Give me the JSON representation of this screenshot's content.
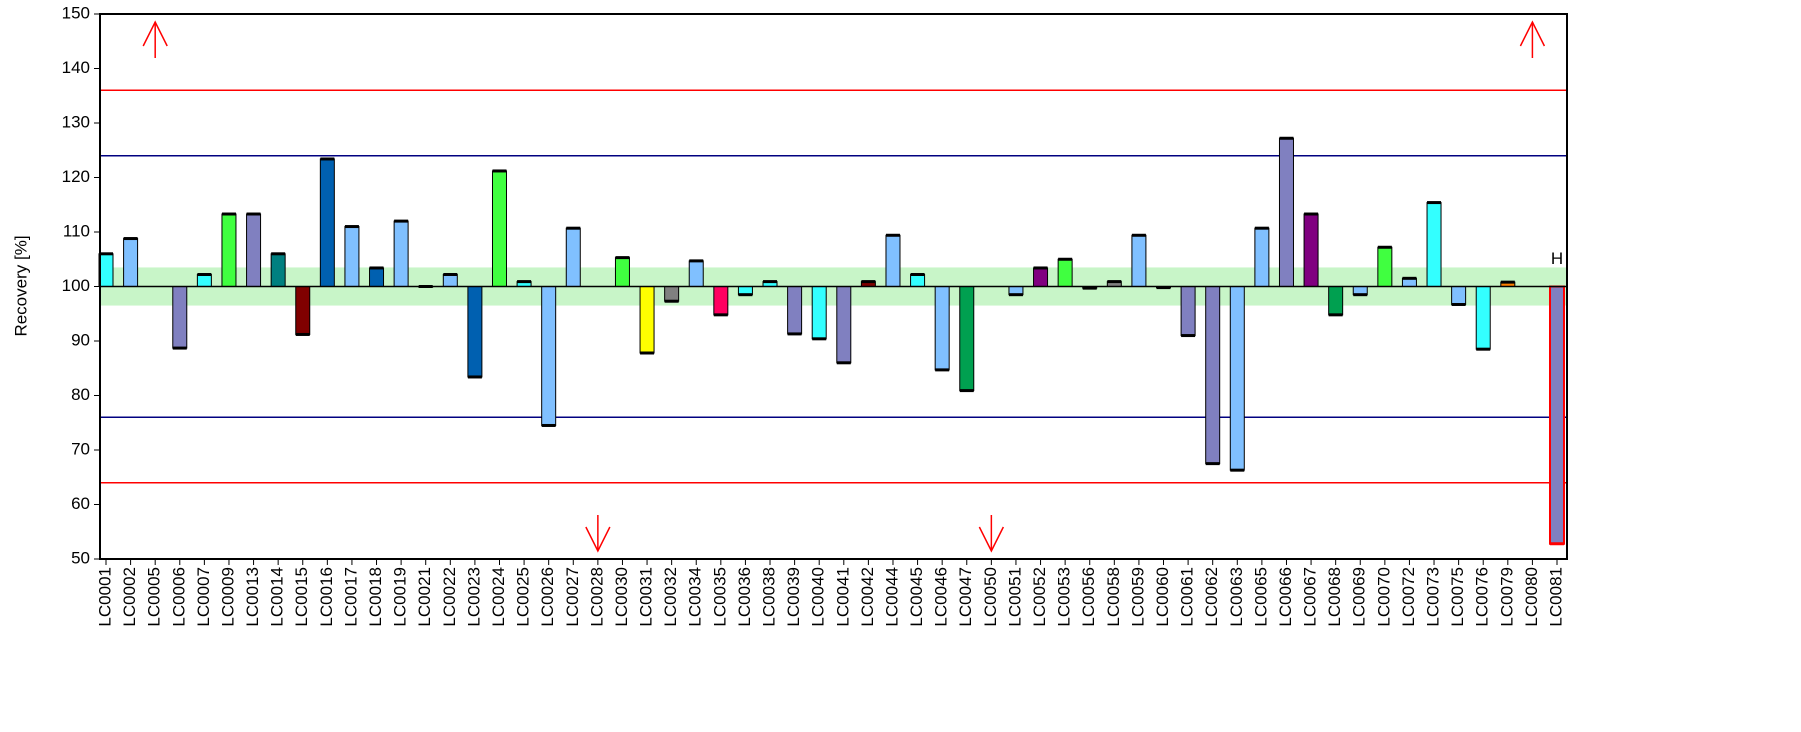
{
  "chart_data": {
    "type": "bar",
    "y_label": "Recovery [%]",
    "categories": [
      "LC0001",
      "LC0002",
      "LC0005",
      "LC0006",
      "LC0007",
      "LC0009",
      "LC0013",
      "LC0014",
      "LC0015",
      "LC0016",
      "LC0017",
      "LC0018",
      "LC0019",
      "LC0021",
      "LC0022",
      "LC0023",
      "LC0024",
      "LC0025",
      "LC0026",
      "LC0027",
      "LC0028",
      "LC0030",
      "LC0031",
      "LC0032",
      "LC0034",
      "LC0035",
      "LC0036",
      "LC0038",
      "LC0039",
      "LC0040",
      "LC0041",
      "LC0042",
      "LC0044",
      "LC0045",
      "LC0046",
      "LC0047",
      "LC0050",
      "LC0051",
      "LC0052",
      "LC0053",
      "LC0056",
      "LC0058",
      "LC0059",
      "LC0060",
      "LC0061",
      "LC0062",
      "LC0063",
      "LC0065",
      "LC0066",
      "LC0067",
      "LC0068",
      "LC0069",
      "LC0070",
      "LC0072",
      "LC0073",
      "LC0075",
      "LC0076",
      "LC0079",
      "LC0080",
      "LC0081"
    ],
    "values": [
      106,
      108.8,
      null,
      88.7,
      102.2,
      113.3,
      113.3,
      106,
      91.2,
      123.4,
      111,
      103.4,
      112,
      100,
      102.2,
      83.4,
      121.2,
      100.9,
      74.5,
      110.7,
      null,
      105.3,
      87.8,
      97.3,
      104.7,
      94.8,
      98.5,
      100.9,
      91.3,
      90.4,
      86,
      100.9,
      109.4,
      102.2,
      84.7,
      80.9,
      null,
      98.5,
      103.4,
      105,
      99.7,
      100.9,
      109.4,
      99.8,
      91,
      67.5,
      66.3,
      110.7,
      127.2,
      113.3,
      94.8,
      98.5,
      107.2,
      101.5,
      115.4,
      96.7,
      88.5,
      100.8,
      null,
      52.8
    ],
    "colors": [
      "#33ffff",
      "#80c0ff",
      null,
      "#8080c0",
      "#33ffff",
      "#40ff40",
      "#8080c0",
      "#008080",
      "#800000",
      "#0060b0",
      "#80c0ff",
      "#0060b0",
      "#80c0ff",
      "#80c0ff",
      "#80c0ff",
      "#0060b0",
      "#40ff40",
      "#33ffff",
      "#80c0ff",
      "#80c0ff",
      null,
      "#40ff40",
      "#ffff00",
      "#808080",
      "#80c0ff",
      "#ff0060",
      "#33ffff",
      "#33ffff",
      "#8080c0",
      "#33ffff",
      "#8080c0",
      "#800000",
      "#80c0ff",
      "#33ffff",
      "#80c0ff",
      "#00a050",
      null,
      "#80c0ff",
      "#800080",
      "#40ff40",
      "#80c0ff",
      "#808080",
      "#80c0ff",
      "#80c0ff",
      "#8080c0",
      "#8080c0",
      "#80c0ff",
      "#80c0ff",
      "#8080c0",
      "#800080",
      "#00a050",
      "#80c0ff",
      "#40ff40",
      "#80c0ff",
      "#33ffff",
      "#80c0ff",
      "#33ffff",
      "#ff8000",
      null,
      "#8080c0"
    ],
    "off_scale": [
      null,
      null,
      "high",
      null,
      null,
      null,
      null,
      null,
      null,
      null,
      null,
      null,
      null,
      null,
      null,
      null,
      null,
      null,
      null,
      null,
      "low",
      null,
      null,
      null,
      null,
      null,
      null,
      null,
      null,
      null,
      null,
      null,
      null,
      null,
      null,
      null,
      "low",
      null,
      null,
      null,
      null,
      null,
      null,
      null,
      null,
      null,
      null,
      null,
      null,
      null,
      null,
      null,
      null,
      null,
      null,
      null,
      null,
      null,
      "high",
      null
    ],
    "off_scale_color": "#ff0000",
    "baseline": 100,
    "ylim": [
      50,
      150
    ],
    "yticks": [
      50,
      60,
      70,
      80,
      90,
      100,
      110,
      120,
      130,
      140,
      150
    ],
    "target_band": [
      96.5,
      103.5
    ],
    "target_band_color": "#c8f5c8",
    "reference_lines": [
      {
        "value": 136,
        "color": "#ff0000"
      },
      {
        "value": 124,
        "color": "#000080"
      },
      {
        "value": 76,
        "color": "#000080"
      },
      {
        "value": 64,
        "color": "#ff0000"
      }
    ],
    "highlight": {
      "category": "LC0081",
      "label": "H",
      "outline": "#ff0000"
    }
  }
}
